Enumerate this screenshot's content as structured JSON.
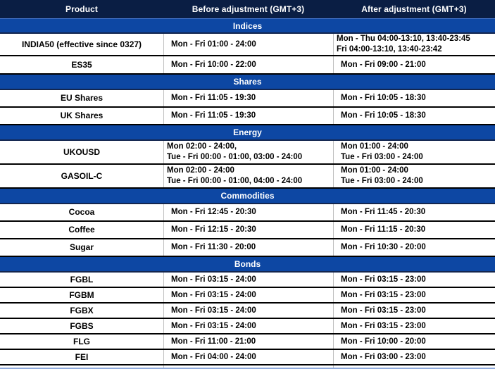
{
  "table": {
    "columns": [
      "Product",
      "Before adjustment (GMT+3)",
      "After adjustment (GMT+3)"
    ],
    "sections": [
      {
        "name": "Indices",
        "rows": [
          {
            "product": "INDIA50 (effective since 0327)",
            "before": "Mon - Fri 01:00 - 24:00",
            "after": "Mon - Thu 04:00-13:10, 13:40-23:45\nFri 04:00-13:10, 13:40-23:42"
          },
          {
            "product": "ES35",
            "before": "Mon - Fri 10:00 - 22:00",
            "after": "Mon - Fri 09:00 - 21:00"
          }
        ]
      },
      {
        "name": "Shares",
        "rows": [
          {
            "product": "EU Shares",
            "before": "Mon - Fri 11:05 - 19:30",
            "after": "Mon - Fri 10:05 - 18:30"
          },
          {
            "product": "UK Shares",
            "before": "Mon - Fri 11:05 - 19:30",
            "after": "Mon - Fri 10:05 - 18:30"
          }
        ]
      },
      {
        "name": "Energy",
        "rows": [
          {
            "product": "UKOUSD",
            "before": "Mon 02:00 - 24:00,\nTue - Fri 00:00 - 01:00, 03:00 - 24:00",
            "after": "Mon 01:00 - 24:00\nTue - Fri 03:00 - 24:00"
          },
          {
            "product": "GASOIL-C",
            "before": "Mon 02:00 - 24:00\nTue - Fri 00:00 - 01:00, 04:00 - 24:00",
            "after": "Mon 01:00 - 24:00\nTue - Fri 03:00 - 24:00"
          }
        ]
      },
      {
        "name": "Commodities",
        "rows": [
          {
            "product": "Cocoa",
            "before": "Mon - Fri 12:45 - 20:30",
            "after": "Mon - Fri 11:45 - 20:30"
          },
          {
            "product": "Coffee",
            "before": "Mon - Fri 12:15 - 20:30",
            "after": "Mon - Fri 11:15 - 20:30"
          },
          {
            "product": "Sugar",
            "before": "Mon - Fri 11:30 - 20:00",
            "after": "Mon - Fri 10:30 - 20:00"
          }
        ]
      },
      {
        "name": "Bonds",
        "rows": [
          {
            "product": "FGBL",
            "before": "Mon - Fri 03:15 - 24:00",
            "after": "Mon - Fri 03:15 - 23:00"
          },
          {
            "product": "FGBM",
            "before": "Mon - Fri 03:15 - 24:00",
            "after": "Mon - Fri 03:15 - 23:00"
          },
          {
            "product": "FGBX",
            "before": "Mon - Fri 03:15 - 24:00",
            "after": "Mon - Fri 03:15 - 23:00"
          },
          {
            "product": "FGBS",
            "before": "Mon - Fri 03:15 - 24:00",
            "after": "Mon - Fri 03:15 - 23:00"
          },
          {
            "product": "FLG",
            "before": "Mon - Fri 11:00 - 21:00",
            "after": "Mon - Fri 10:00 - 20:00"
          },
          {
            "product": "FEI",
            "before": "Mon - Fri 04:00 - 24:00",
            "after": "Mon - Fri 03:00 - 23:00"
          }
        ]
      }
    ]
  },
  "colors": {
    "header_bg": "#0A1E44",
    "section_band_bg": "#0D47A3",
    "section_band_bottom_edge": "#13264F",
    "row_divider": "#000000",
    "column_separator": "#BFBFBF",
    "bottom_cut_edge": "#8FAADC",
    "header_text": "#FFFFFF",
    "body_text": "#000000"
  }
}
